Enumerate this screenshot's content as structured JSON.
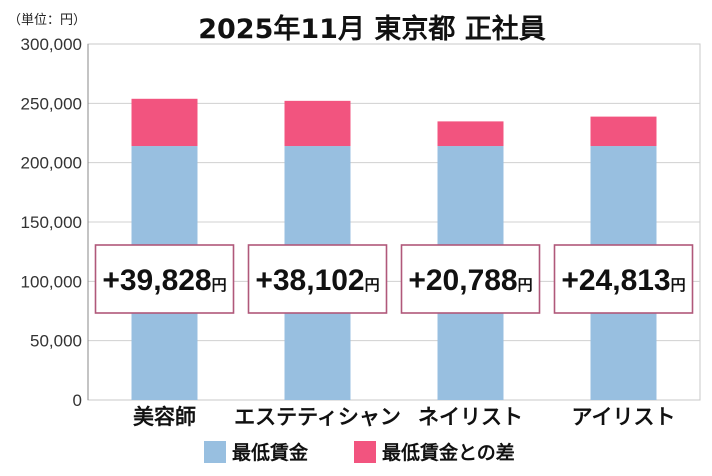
{
  "chart_data": {
    "type": "bar",
    "stacked": true,
    "title": "2025年11月 東京都 正社員",
    "unit_label": "（単位：円）",
    "categories": [
      "美容師",
      "エステティシャン",
      "ネイリスト",
      "アイリスト"
    ],
    "series": [
      {
        "name": "最低賃金",
        "color": "#98bfe0",
        "values": [
          214000,
          214000,
          214000,
          214000
        ]
      },
      {
        "name": "最低賃金との差",
        "color": "#f2547f",
        "values": [
          39828,
          38102,
          20788,
          24813
        ]
      }
    ],
    "annotations": [
      {
        "number": "+39,828",
        "unit": "円"
      },
      {
        "number": "+38,102",
        "unit": "円"
      },
      {
        "number": "+20,788",
        "unit": "円"
      },
      {
        "number": "+24,813",
        "unit": "円"
      }
    ],
    "ylim": [
      0,
      300000
    ],
    "yticks": [
      0,
      50000,
      100000,
      150000,
      200000,
      250000,
      300000
    ],
    "ytick_labels": [
      "0",
      "50,000",
      "100,000",
      "150,000",
      "200,000",
      "250,000",
      "300,000"
    ],
    "grid": true,
    "legend": "bottom",
    "annotation_border_color": "#b0587a"
  }
}
